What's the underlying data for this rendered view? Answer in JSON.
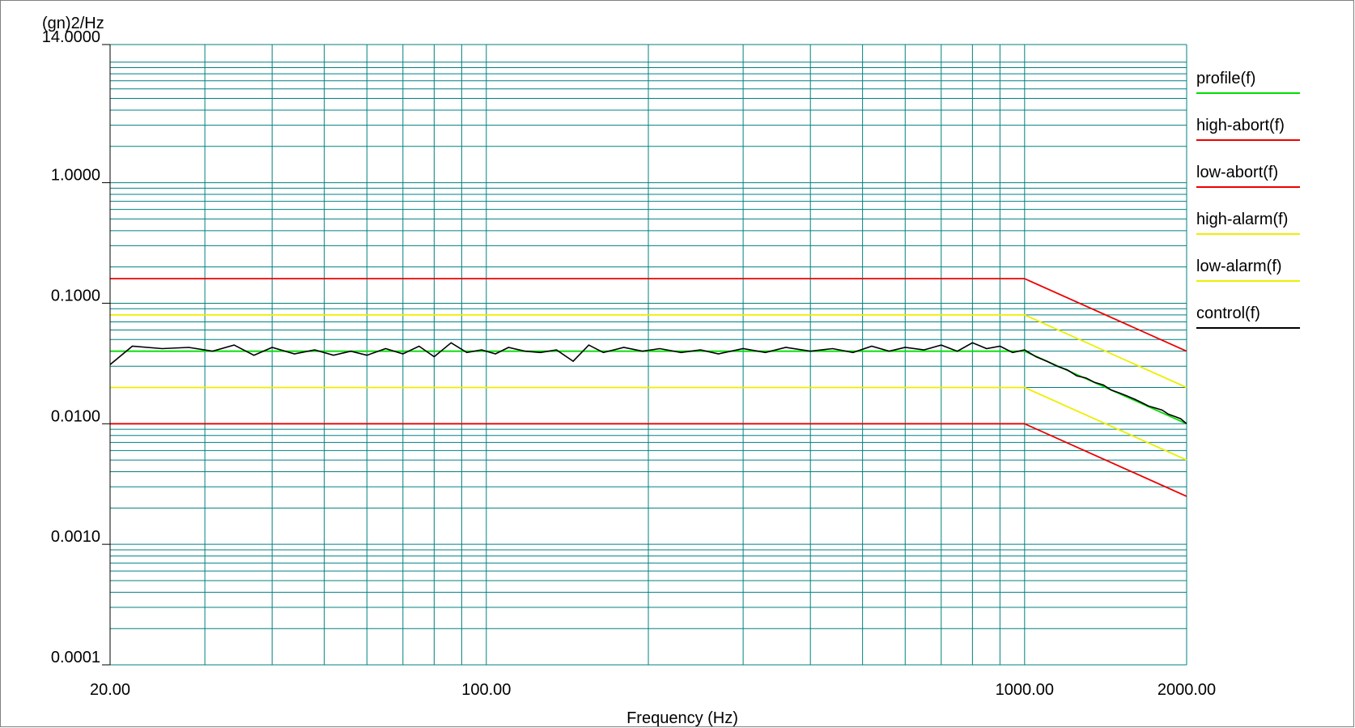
{
  "chart_data": {
    "type": "line",
    "ylabel": "(gn)2/Hz",
    "xlabel": "Frequency (Hz)",
    "x_scale": "log",
    "y_scale": "log",
    "xlim": [
      20,
      2000
    ],
    "ylim": [
      0.0001,
      14
    ],
    "x_ticks": [
      {
        "value": 20,
        "label": "20.00"
      },
      {
        "value": 100,
        "label": "100.00"
      },
      {
        "value": 1000,
        "label": "1000.00"
      },
      {
        "value": 2000,
        "label": "2000.00"
      }
    ],
    "y_ticks": [
      {
        "value": 14,
        "label": "14.0000"
      },
      {
        "value": 1,
        "label": "1.0000"
      },
      {
        "value": 0.1,
        "label": "0.1000"
      },
      {
        "value": 0.01,
        "label": "0.0100"
      },
      {
        "value": 0.001,
        "label": "0.0010"
      },
      {
        "value": 0.0001,
        "label": "0.0001"
      }
    ],
    "grid": true,
    "legend_position": "right",
    "colors": {
      "grid": "#008080",
      "profile": "#00dd00",
      "abort": "#ee0000",
      "alarm": "#eeee00",
      "control": "#000000"
    },
    "series": [
      {
        "name": "profile(f)",
        "color": "#00dd00",
        "x": [
          20,
          1000,
          2000
        ],
        "y": [
          0.04,
          0.04,
          0.01
        ]
      },
      {
        "name": "high-abort(f)",
        "color": "#ee0000",
        "x": [
          20,
          1000,
          2000
        ],
        "y": [
          0.16,
          0.16,
          0.04
        ]
      },
      {
        "name": "low-abort(f)",
        "color": "#ee0000",
        "x": [
          20,
          1000,
          2000
        ],
        "y": [
          0.01,
          0.01,
          0.0025
        ]
      },
      {
        "name": "high-alarm(f)",
        "color": "#eeee00",
        "x": [
          20,
          1000,
          2000
        ],
        "y": [
          0.08,
          0.08,
          0.02
        ]
      },
      {
        "name": "low-alarm(f)",
        "color": "#eeee00",
        "x": [
          20,
          1000,
          2000
        ],
        "y": [
          0.02,
          0.02,
          0.005
        ]
      },
      {
        "name": "control(f)",
        "color": "#000000",
        "x": [
          20,
          22,
          25,
          28,
          31,
          34,
          37,
          40,
          44,
          48,
          52,
          56,
          60,
          65,
          70,
          75,
          80,
          86,
          92,
          98,
          104,
          110,
          118,
          126,
          135,
          145,
          155,
          165,
          180,
          195,
          210,
          230,
          250,
          270,
          300,
          330,
          360,
          400,
          440,
          480,
          520,
          560,
          600,
          650,
          700,
          750,
          800,
          850,
          900,
          950,
          1000,
          1050,
          1100,
          1150,
          1200,
          1250,
          1300,
          1350,
          1400,
          1450,
          1500,
          1550,
          1600,
          1650,
          1700,
          1750,
          1800,
          1850,
          1900,
          1950,
          2000
        ],
        "y": [
          0.031,
          0.044,
          0.042,
          0.043,
          0.04,
          0.045,
          0.037,
          0.043,
          0.038,
          0.041,
          0.037,
          0.04,
          0.037,
          0.042,
          0.038,
          0.044,
          0.036,
          0.047,
          0.039,
          0.041,
          0.038,
          0.043,
          0.04,
          0.039,
          0.041,
          0.033,
          0.045,
          0.039,
          0.043,
          0.04,
          0.042,
          0.039,
          0.041,
          0.038,
          0.042,
          0.039,
          0.043,
          0.04,
          0.042,
          0.039,
          0.044,
          0.04,
          0.043,
          0.041,
          0.045,
          0.04,
          0.047,
          0.042,
          0.044,
          0.039,
          0.041,
          0.036,
          0.033,
          0.03,
          0.028,
          0.025,
          0.024,
          0.022,
          0.021,
          0.019,
          0.018,
          0.017,
          0.016,
          0.015,
          0.014,
          0.0135,
          0.013,
          0.012,
          0.0115,
          0.011,
          0.01
        ]
      }
    ]
  }
}
